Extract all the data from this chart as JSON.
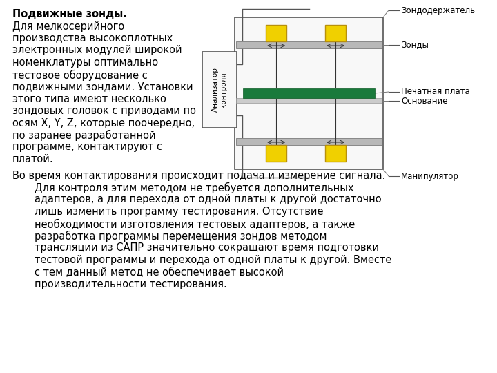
{
  "title_bold": "Подвижные зонды.",
  "para1_lines": [
    "Для мелкосерийного",
    "производства высокоплотных",
    "электронных модулей широкой",
    "номенклатуры оптимально",
    "тестовое оборудование с",
    "подвижными зондами. Установки",
    "этого типа имеют несколько",
    "зондовых головок с приводами по",
    "осям X, Y, Z, которые поочередно,",
    "по заранее разработанной",
    "программе, контактируют с",
    "платой."
  ],
  "para2_line1": "Во время контактирования происходит подача и измерение сигнала.",
  "para2_rest_lines": [
    "Для контроля этим методом не требуется дополнительных",
    "адаптеров, а для перехода от одной платы к другой достаточно",
    "лишь изменить программу тестирования. Отсутствие",
    "необходимости изготовления тестовых адаптеров, а также",
    "разработка программы перемещения зондов методом",
    "трансляции из САПР значительно сокращают время подготовки",
    "тестовой программы и перехода от одной платы к другой. Вместе",
    "с тем данный метод не обеспечивает высокой",
    "производительности тестирования."
  ],
  "legend_labels": [
    "Зондодержатель",
    "Зонды",
    "Печатная плата",
    "Основание",
    "Манипулятор"
  ],
  "bg_color": "#ffffff",
  "text_color": "#000000",
  "probe_color": "#f0d000",
  "pcb_color": "#1a7a3c",
  "rail_color": "#b8b8b8",
  "box_edge_color": "#555555",
  "line_color": "#555555"
}
